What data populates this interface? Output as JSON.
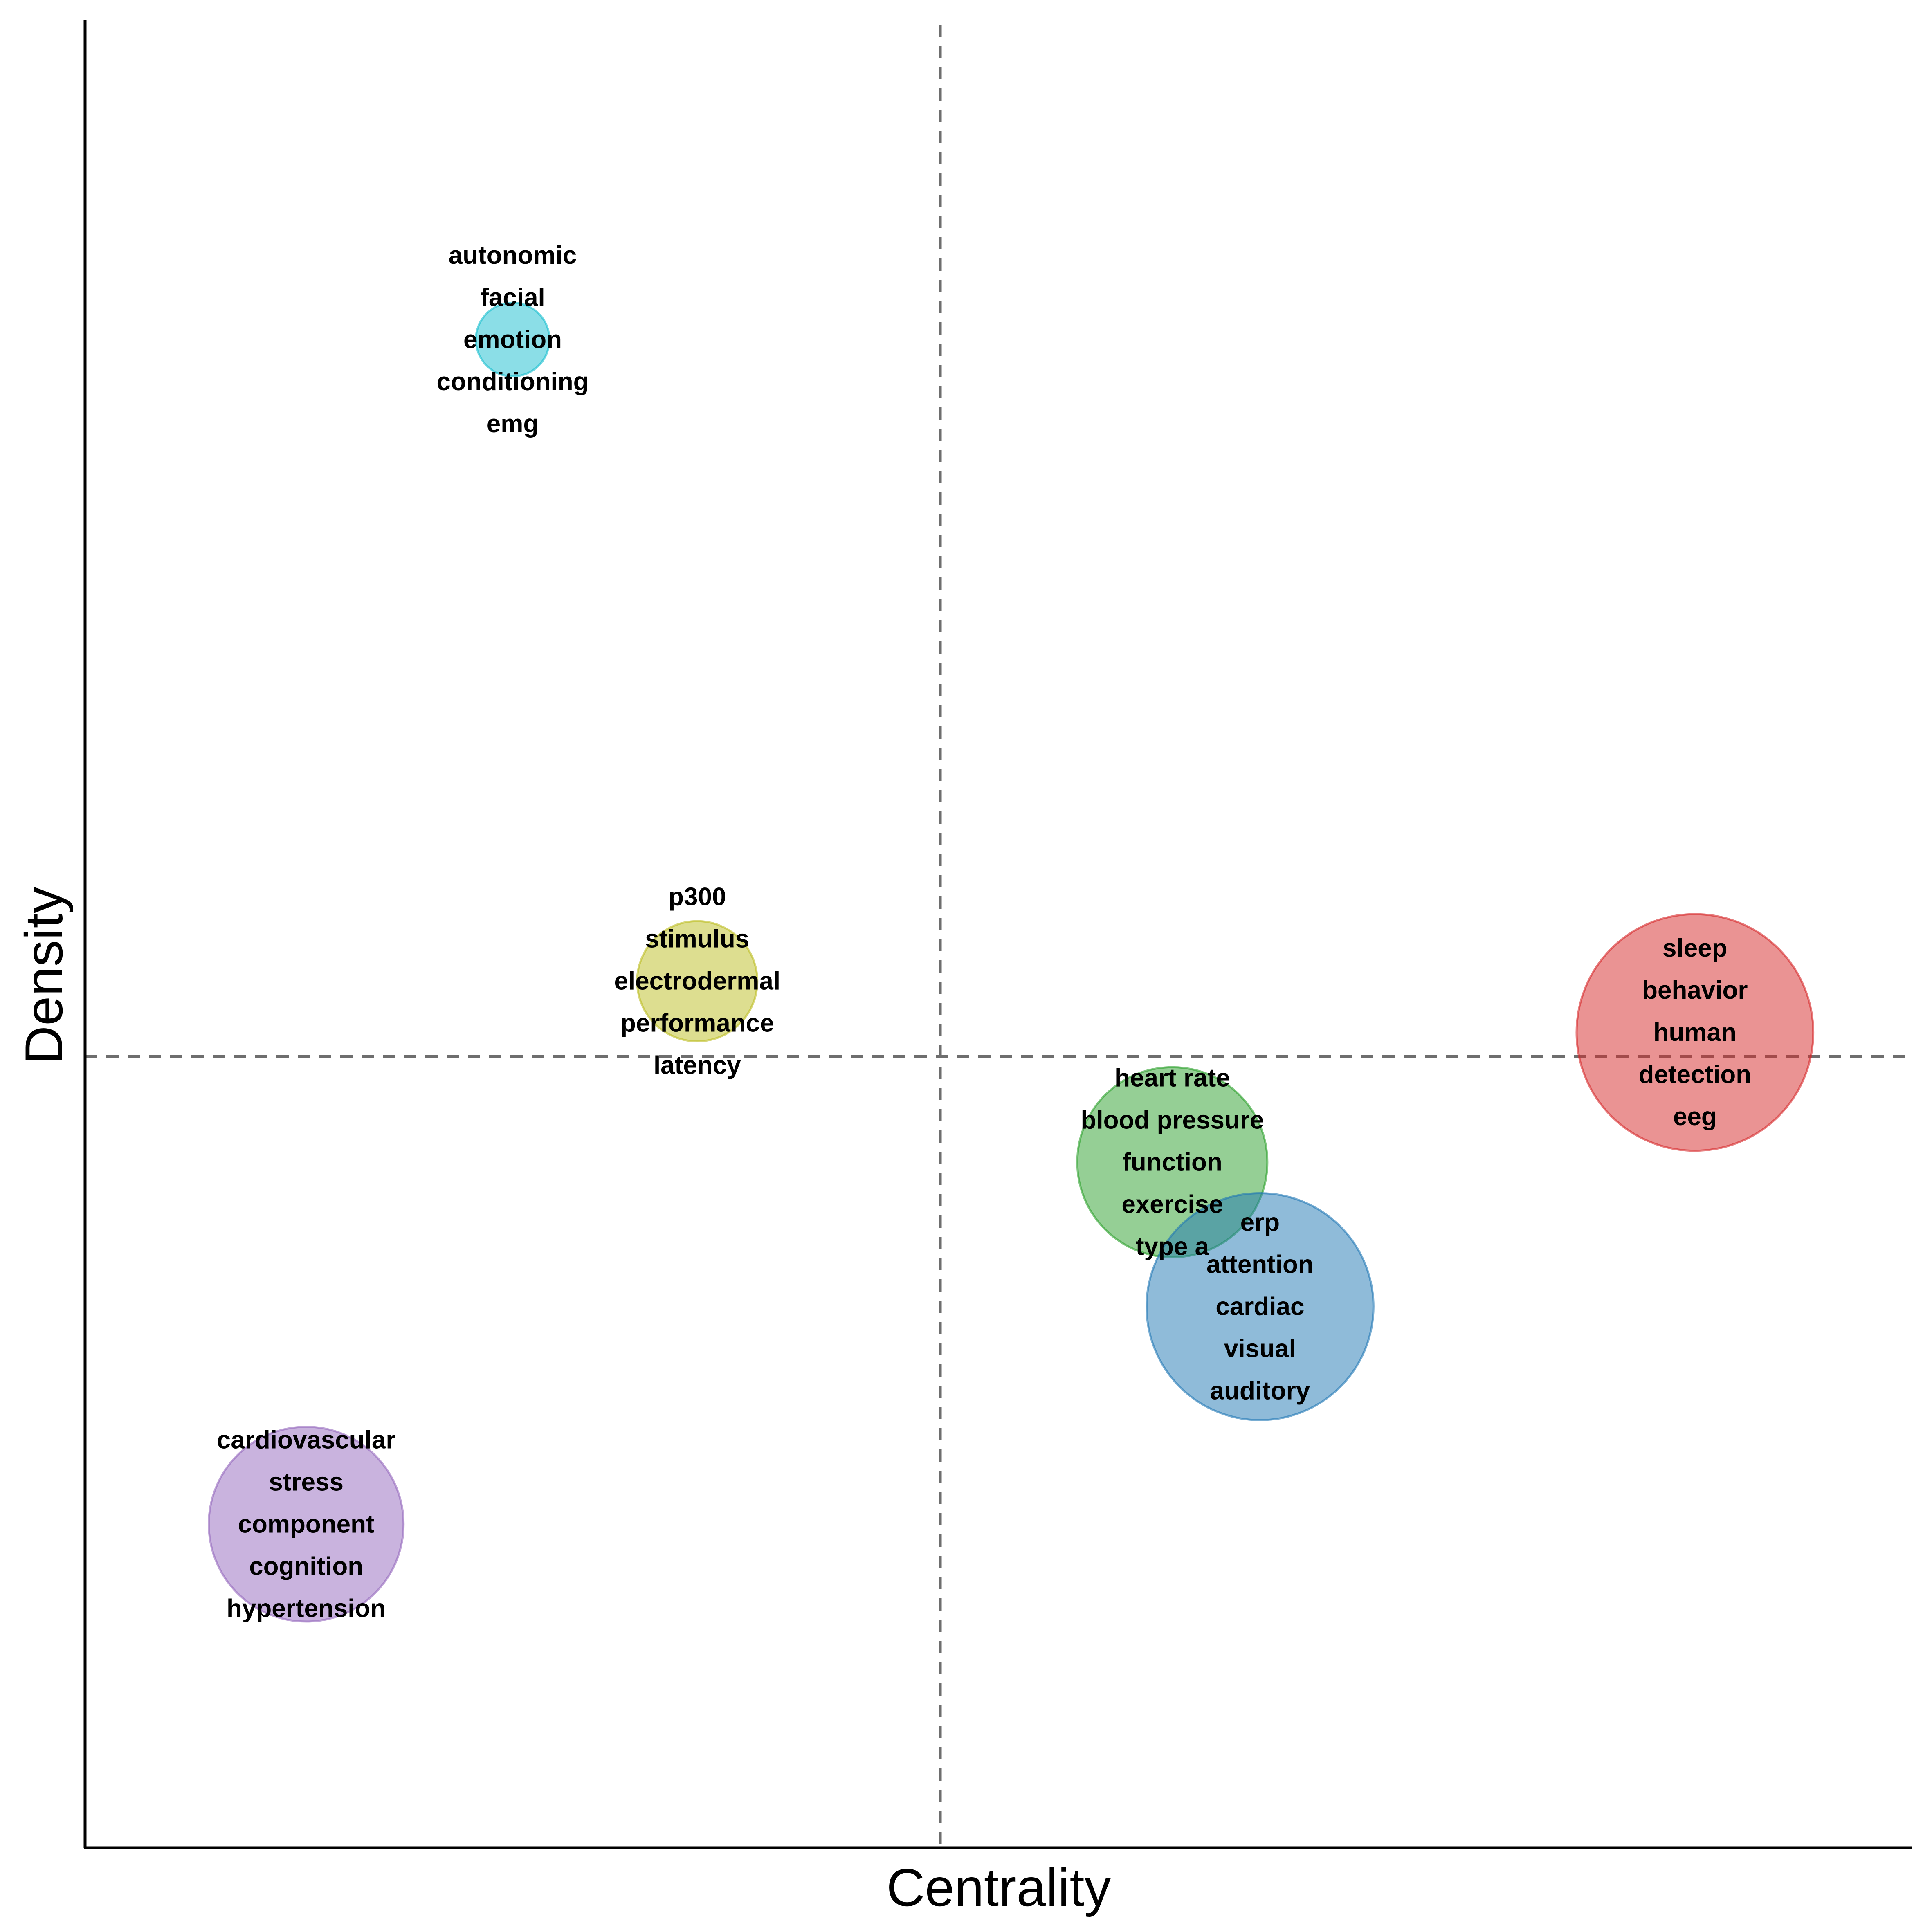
{
  "chart_data": {
    "type": "scatter",
    "title": "",
    "xlabel": "Centrality",
    "ylabel": "Density",
    "xlim": [
      0,
      100
    ],
    "ylim": [
      0,
      100
    ],
    "grid": false,
    "axis_ticks": false,
    "reference_lines": {
      "x": 46.8,
      "y": 43.3
    },
    "clusters": [
      {
        "x": 23.4,
        "y": 82.5,
        "size": 6,
        "color": "#17becf",
        "labels": [
          "autonomic",
          "facial",
          "emotion",
          "conditioning",
          "emg"
        ]
      },
      {
        "x": 33.5,
        "y": 47.4,
        "size": 16,
        "color": "#bcbd22",
        "labels": [
          "p300",
          "stimulus",
          "electrodermal",
          "performance",
          "latency"
        ]
      },
      {
        "x": 88.1,
        "y": 44.6,
        "size": 62,
        "color": "#d62728",
        "labels": [
          "sleep",
          "behavior",
          "human",
          "detection",
          "eeg"
        ]
      },
      {
        "x": 59.5,
        "y": 37.5,
        "size": 40,
        "color": "#2ca02c",
        "labels": [
          "heart rate",
          "blood pressure",
          "function",
          "exercise",
          "type a"
        ]
      },
      {
        "x": 64.3,
        "y": 29.6,
        "size": 57,
        "color": "#1f77b4",
        "labels": [
          "erp",
          "attention",
          "cardiac",
          "visual",
          "auditory"
        ]
      },
      {
        "x": 12.1,
        "y": 17.7,
        "size": 42,
        "color": "#9467bd",
        "labels": [
          "cardiovascular",
          "stress",
          "component",
          "cognition",
          "hypertension"
        ]
      }
    ]
  }
}
